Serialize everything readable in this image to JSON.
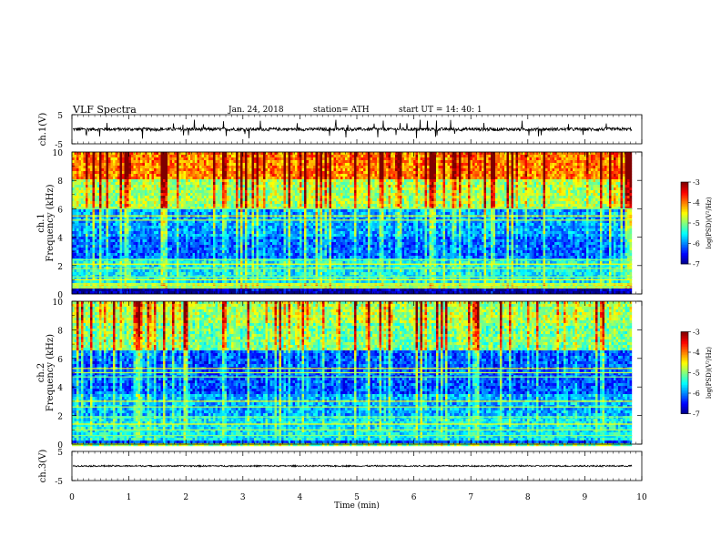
{
  "header": {
    "title": "VLF  Spectra",
    "date": "Jan. 24, 2018",
    "station": "station= ATH",
    "start": "start  UT  =   14: 40: 1"
  },
  "chart_data": [
    {
      "type": "line",
      "panel": "ch1-waveform",
      "ylabel": "ch.1(V)",
      "ylim": [
        -5,
        5
      ],
      "yticks": [
        "5",
        "-5"
      ],
      "xlim": [
        0,
        10
      ],
      "x_extent": [
        0,
        9.83
      ],
      "description_values": {
        "baseline": 0.0,
        "typical_amplitude": 1.0,
        "max_spike": 3.2
      },
      "color": "#000000"
    },
    {
      "type": "heatmap",
      "panel": "ch1-spectrogram",
      "ylabel": "ch.1\nFrequency (kHz)",
      "ylabel_lines": [
        "ch.1",
        "Frequency (kHz)"
      ],
      "ylim": [
        0,
        10
      ],
      "yticks": [
        "0",
        "2",
        "4",
        "6",
        "8",
        "10"
      ],
      "xlim": [
        0,
        10
      ],
      "x_extent": [
        0,
        9.83
      ],
      "colorbar": {
        "label": "log(PSD)(V²/Hz)",
        "range": [
          -7,
          -3
        ],
        "ticks": [
          "-3",
          "-4",
          "-5",
          "-6",
          "-7"
        ]
      },
      "band_levels_by_freq_khz": [
        {
          "from": 0.0,
          "to": 0.3,
          "level": -7.0
        },
        {
          "from": 0.3,
          "to": 0.8,
          "level": -4.8
        },
        {
          "from": 0.8,
          "to": 2.5,
          "level": -5.6
        },
        {
          "from": 2.5,
          "to": 4.0,
          "level": -6.2
        },
        {
          "from": 4.0,
          "to": 6.0,
          "level": -6.0
        },
        {
          "from": 6.0,
          "to": 8.0,
          "level": -5.0
        },
        {
          "from": 8.0,
          "to": 10.0,
          "level": -4.2
        }
      ],
      "tone_lines_khz": [
        0.5,
        0.7,
        1.0,
        1.2,
        1.8,
        2.1,
        2.4,
        5.2,
        5.5,
        6.0
      ]
    },
    {
      "type": "heatmap",
      "panel": "ch2-spectrogram",
      "ylabel": "ch.2\nFrequency (kHz)",
      "ylabel_lines": [
        "ch.2",
        "Frequency (kHz)"
      ],
      "ylim": [
        0,
        10
      ],
      "yticks": [
        "0",
        "2",
        "4",
        "6",
        "8",
        "10"
      ],
      "xlim": [
        0,
        10
      ],
      "x_extent": [
        0,
        9.83
      ],
      "colorbar": {
        "label": "log(PSD)(V²/Hz)",
        "range": [
          -7,
          -3
        ],
        "ticks": [
          "-3",
          "-4",
          "-5",
          "-6",
          "-7"
        ]
      },
      "band_levels_by_freq_khz": [
        {
          "from": 0.0,
          "to": 0.3,
          "level": -6.3
        },
        {
          "from": 0.3,
          "to": 2.0,
          "level": -5.6
        },
        {
          "from": 2.0,
          "to": 3.5,
          "level": -5.9
        },
        {
          "from": 3.5,
          "to": 6.5,
          "level": -6.3
        },
        {
          "from": 6.5,
          "to": 8.5,
          "level": -5.2
        },
        {
          "from": 8.5,
          "to": 10.0,
          "level": -5.0
        }
      ],
      "tone_lines_khz": [
        0.6,
        1.0,
        1.4,
        1.9,
        2.6,
        3.0,
        4.7,
        5.0,
        5.3
      ]
    },
    {
      "type": "line",
      "panel": "ch3-waveform",
      "ylabel": "ch.3(V)",
      "ylim": [
        -5,
        5
      ],
      "yticks": [
        "5",
        "-5"
      ],
      "xlabel": "Time (min)",
      "xticks": [
        "0",
        "1",
        "2",
        "3",
        "4",
        "5",
        "6",
        "7",
        "8",
        "9",
        "10"
      ],
      "xlim": [
        0,
        10
      ],
      "x_extent": [
        0,
        9.83
      ],
      "description_values": {
        "baseline": 0.0,
        "typical_amplitude": 0.3
      },
      "color": "#000000"
    }
  ]
}
